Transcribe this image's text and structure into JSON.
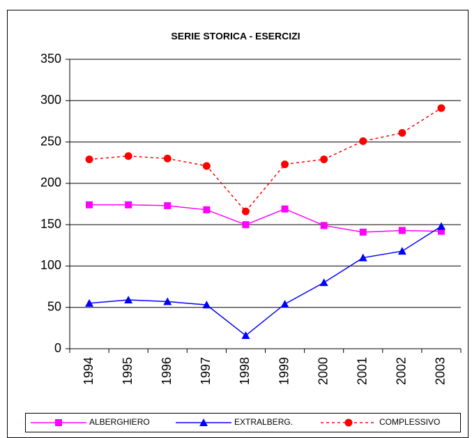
{
  "chart_data": {
    "type": "line",
    "title": "SERIE STORICA - ESERCIZI",
    "categories": [
      "1994",
      "1995",
      "1996",
      "1997",
      "1998",
      "1999",
      "2000",
      "2001",
      "2002",
      "2003"
    ],
    "series": [
      {
        "name": "ALBERGHIERO",
        "color": "#ff00ff",
        "marker": "square",
        "line_style": "solid",
        "values": [
          174,
          174,
          173,
          168,
          150,
          169,
          149,
          141,
          143,
          142
        ]
      },
      {
        "name": "EXTRALBERG.",
        "color": "#0000ff",
        "marker": "triangle",
        "line_style": "solid",
        "values": [
          55,
          59,
          57,
          53,
          16,
          54,
          80,
          110,
          118,
          148
        ]
      },
      {
        "name": "COMPLESSIVO",
        "color": "#ff0000",
        "marker": "circle",
        "line_style": "dashed",
        "values": [
          229,
          233,
          230,
          221,
          166,
          223,
          229,
          251,
          261,
          291
        ]
      }
    ],
    "ylim": [
      0,
      350
    ],
    "yticks": [
      0,
      50,
      100,
      150,
      200,
      250,
      300,
      350
    ],
    "grid": true,
    "legend": "bottom"
  }
}
